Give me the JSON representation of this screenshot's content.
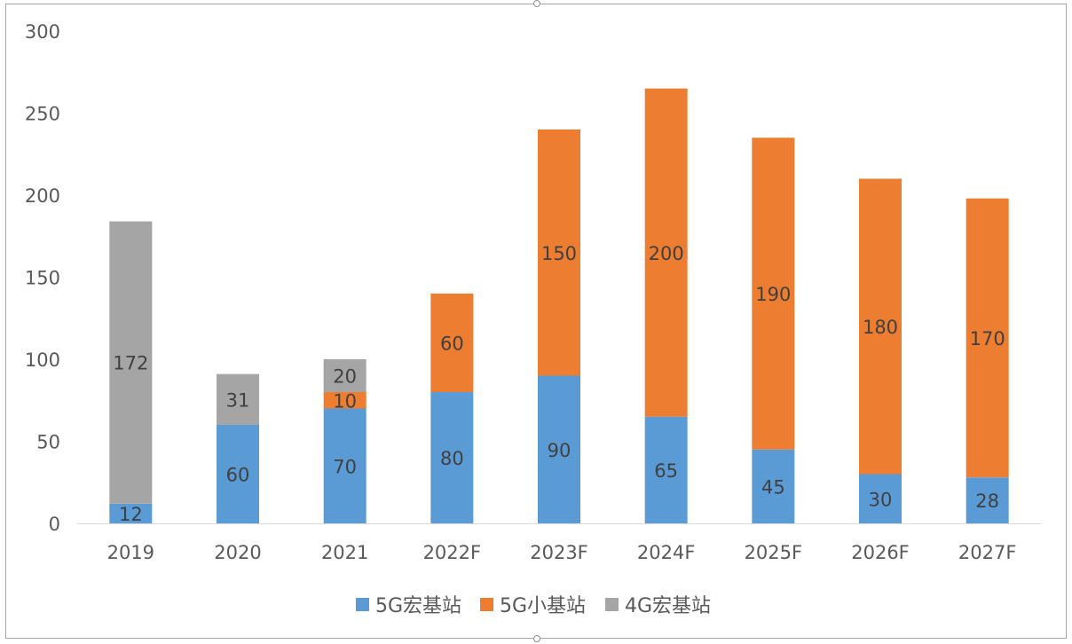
{
  "chart_data": {
    "type": "bar",
    "stacked": true,
    "categories": [
      "2019",
      "2020",
      "2021",
      "2022F",
      "2023F",
      "2024F",
      "2025F",
      "2026F",
      "2027F"
    ],
    "series": [
      {
        "name": "5G宏基站",
        "color": "#5b9bd5",
        "values": [
          12,
          60,
          70,
          80,
          90,
          65,
          45,
          30,
          28
        ]
      },
      {
        "name": "5G小基站",
        "color": "#ed7d31",
        "values": [
          null,
          null,
          10,
          60,
          150,
          200,
          190,
          180,
          170
        ]
      },
      {
        "name": "4G宏基站",
        "color": "#a5a5a5",
        "values": [
          172,
          31,
          20,
          null,
          null,
          null,
          null,
          null,
          null
        ]
      }
    ],
    "title": "",
    "xlabel": "",
    "ylabel": "",
    "ylim": [
      0,
      300
    ],
    "yticks": [
      0,
      50,
      100,
      150,
      200,
      250,
      300
    ],
    "grid": false,
    "data_labels": true,
    "legend": "bottom-center"
  }
}
